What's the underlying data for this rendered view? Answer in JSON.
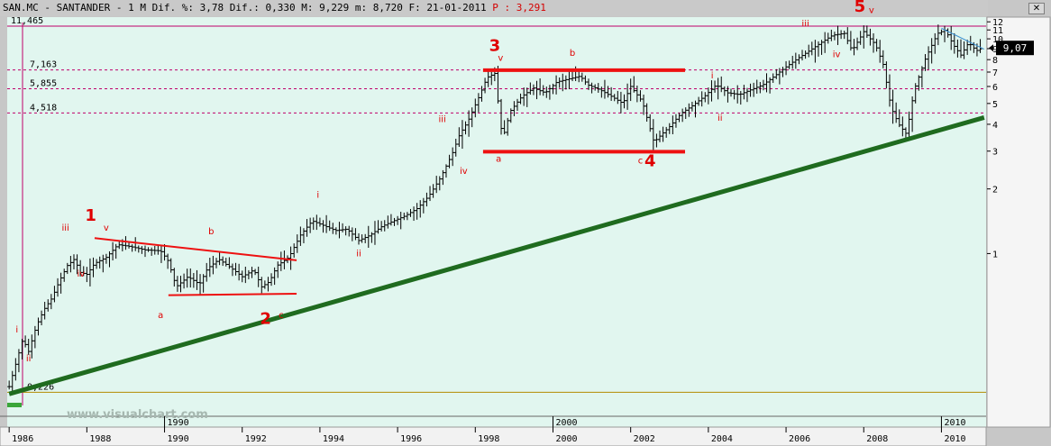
{
  "header": {
    "symbol": "SAN.MC",
    "name": "SANTANDER",
    "period": "1 M",
    "dif_pct_label": "Dif. %:",
    "dif_pct": "3,78",
    "dif_label": "Dif.:",
    "dif": "0,330",
    "high_label": "M:",
    "high": "9,229",
    "low_label": "m:",
    "low": "8,720",
    "date_label": "F:",
    "date": "21-01-2011",
    "price_label": "P :",
    "price": "3,291",
    "close_icon": "close-icon"
  },
  "watermark": "www.visualchart.com",
  "colors": {
    "background": "#e1f6ef",
    "frame": "#c7c7c7",
    "bars": "#000000",
    "wave_labels": "#e00000",
    "level_lines": "#c0006a",
    "trend_red": "#ee1111",
    "trend_green": "#1f6b1f",
    "trend_blue": "#3a8fd0",
    "last_price_box": "#000000"
  },
  "chart_data": {
    "type": "ohlc",
    "title": "SAN.MC - SANTANDER - 1 M",
    "y_scale": "log",
    "ylim": [
      0.2,
      12.5
    ],
    "xlim": [
      1986.0,
      2011.1
    ],
    "grid": false,
    "x_ticks": [
      "1986",
      "1988",
      "1990",
      "1992",
      "1994",
      "1996",
      "1998",
      "2000",
      "2002",
      "2004",
      "2006",
      "2008",
      "2010"
    ],
    "x_ticks_upper": [
      "1990",
      "2000",
      "2010"
    ],
    "y_ticks": [
      "12",
      "11",
      "10",
      "9",
      "8",
      "7",
      "6",
      "5",
      "4",
      "3",
      "2",
      "1"
    ],
    "last_price": "9,07",
    "levels": [
      {
        "label": "11,465",
        "value": 11.465,
        "style": "solid"
      },
      {
        "label": "7,163",
        "value": 7.163,
        "style": "dotted"
      },
      {
        "label": "5,855",
        "value": 5.855,
        "style": "dotted"
      },
      {
        "label": "4,518",
        "value": 4.518,
        "style": "dotted"
      },
      {
        "label": "0,226",
        "value": 0.226,
        "style": "solid"
      }
    ],
    "price_path": [
      [
        1986.0,
        0.24
      ],
      [
        1986.2,
        0.32
      ],
      [
        1986.35,
        0.4
      ],
      [
        1986.5,
        0.35
      ],
      [
        1986.7,
        0.46
      ],
      [
        1986.9,
        0.55
      ],
      [
        1987.1,
        0.62
      ],
      [
        1987.3,
        0.75
      ],
      [
        1987.5,
        0.88
      ],
      [
        1987.7,
        0.95
      ],
      [
        1987.8,
        0.82
      ],
      [
        1988.0,
        0.8
      ],
      [
        1988.2,
        0.9
      ],
      [
        1988.5,
        0.96
      ],
      [
        1988.8,
        1.1
      ],
      [
        1989.1,
        1.08
      ],
      [
        1989.5,
        1.04
      ],
      [
        1989.9,
        1.03
      ],
      [
        1990.1,
        0.92
      ],
      [
        1990.3,
        0.7
      ],
      [
        1990.6,
        0.78
      ],
      [
        1990.9,
        0.72
      ],
      [
        1991.1,
        0.85
      ],
      [
        1991.4,
        0.94
      ],
      [
        1991.7,
        0.86
      ],
      [
        1992.0,
        0.78
      ],
      [
        1992.3,
        0.84
      ],
      [
        1992.5,
        0.7
      ],
      [
        1992.7,
        0.74
      ],
      [
        1992.9,
        0.88
      ],
      [
        1993.2,
        0.96
      ],
      [
        1993.5,
        1.22
      ],
      [
        1993.8,
        1.42
      ],
      [
        1994.1,
        1.35
      ],
      [
        1994.4,
        1.28
      ],
      [
        1994.7,
        1.3
      ],
      [
        1995.0,
        1.15
      ],
      [
        1995.3,
        1.22
      ],
      [
        1995.6,
        1.34
      ],
      [
        1995.9,
        1.42
      ],
      [
        1996.2,
        1.5
      ],
      [
        1996.5,
        1.62
      ],
      [
        1996.8,
        1.85
      ],
      [
        1997.1,
        2.25
      ],
      [
        1997.4,
        2.9
      ],
      [
        1997.6,
        3.6
      ],
      [
        1997.8,
        4.1
      ],
      [
        1998.1,
        5.4
      ],
      [
        1998.3,
        6.6
      ],
      [
        1998.5,
        6.9
      ],
      [
        1998.7,
        3.4
      ],
      [
        1998.9,
        4.6
      ],
      [
        1999.2,
        5.4
      ],
      [
        1999.5,
        5.9
      ],
      [
        1999.8,
        5.6
      ],
      [
        2000.1,
        6.3
      ],
      [
        2000.4,
        6.5
      ],
      [
        2000.7,
        6.7
      ],
      [
        2000.9,
        6.1
      ],
      [
        2001.2,
        5.8
      ],
      [
        2001.5,
        5.4
      ],
      [
        2001.8,
        5.0
      ],
      [
        2002.0,
        6.0
      ],
      [
        2002.3,
        5.1
      ],
      [
        2002.6,
        3.3
      ],
      [
        2002.8,
        3.6
      ],
      [
        2003.0,
        3.9
      ],
      [
        2003.3,
        4.5
      ],
      [
        2003.6,
        4.9
      ],
      [
        2003.9,
        5.4
      ],
      [
        2004.2,
        6.1
      ],
      [
        2004.5,
        5.6
      ],
      [
        2004.8,
        5.5
      ],
      [
        2005.1,
        5.8
      ],
      [
        2005.4,
        6.1
      ],
      [
        2005.7,
        6.7
      ],
      [
        2006.0,
        7.4
      ],
      [
        2006.3,
        8.1
      ],
      [
        2006.6,
        8.8
      ],
      [
        2006.9,
        9.6
      ],
      [
        2007.2,
        10.4
      ],
      [
        2007.5,
        10.6
      ],
      [
        2007.7,
        8.8
      ],
      [
        2008.0,
        10.8
      ],
      [
        2008.3,
        9.4
      ],
      [
        2008.5,
        7.6
      ],
      [
        2008.7,
        4.8
      ],
      [
        2008.9,
        4.0
      ],
      [
        2009.1,
        3.6
      ],
      [
        2009.3,
        5.8
      ],
      [
        2009.6,
        8.2
      ],
      [
        2009.9,
        10.6
      ],
      [
        2010.1,
        11.0
      ],
      [
        2010.3,
        9.4
      ],
      [
        2010.5,
        8.4
      ],
      [
        2010.7,
        9.6
      ],
      [
        2010.9,
        8.8
      ],
      [
        2011.05,
        9.07
      ]
    ],
    "trendlines": [
      {
        "color": "green",
        "width": 5,
        "points": [
          [
            1986.0,
            0.222
          ],
          [
            2011.1,
            4.3
          ]
        ]
      },
      {
        "color": "red",
        "width": 2,
        "points": [
          [
            1988.2,
            1.18
          ],
          [
            1993.4,
            0.93
          ]
        ]
      },
      {
        "color": "red",
        "width": 2,
        "points": [
          [
            1990.1,
            0.64
          ],
          [
            1993.4,
            0.65
          ]
        ]
      },
      {
        "color": "red",
        "width": 4,
        "points": [
          [
            1998.2,
            7.15
          ],
          [
            2003.4,
            7.15
          ]
        ]
      },
      {
        "color": "red",
        "width": 4,
        "points": [
          [
            1998.2,
            2.98
          ],
          [
            2003.4,
            2.98
          ]
        ]
      },
      {
        "color": "blue",
        "width": 1,
        "points": [
          [
            2010.0,
            11.2
          ],
          [
            2011.1,
            8.95
          ]
        ]
      }
    ],
    "annotations": [
      {
        "text": "1",
        "x": 1988.1,
        "y": 1.42,
        "size": "big"
      },
      {
        "text": "2",
        "x": 1992.6,
        "y": 0.47,
        "size": "big"
      },
      {
        "text": "3",
        "x": 1998.5,
        "y": 8.8,
        "size": "big"
      },
      {
        "text": "4",
        "x": 2002.5,
        "y": 2.55,
        "size": "big"
      },
      {
        "text": "5",
        "x": 2007.9,
        "y": 13.4,
        "size": "big"
      },
      {
        "text": "i",
        "x": 1986.2,
        "y": 0.43,
        "size": "small"
      },
      {
        "text": "ii",
        "x": 1986.5,
        "y": 0.315,
        "size": "small"
      },
      {
        "text": "iii",
        "x": 1987.45,
        "y": 1.28,
        "size": "small"
      },
      {
        "text": "iv",
        "x": 1987.85,
        "y": 0.78,
        "size": "small"
      },
      {
        "text": "v",
        "x": 1988.5,
        "y": 1.28,
        "size": "small"
      },
      {
        "text": "a",
        "x": 1989.9,
        "y": 0.5,
        "size": "small"
      },
      {
        "text": "b",
        "x": 1991.2,
        "y": 1.23,
        "size": "small"
      },
      {
        "text": "c",
        "x": 1993.0,
        "y": 0.5,
        "size": "small"
      },
      {
        "text": "i",
        "x": 1993.95,
        "y": 1.82,
        "size": "small"
      },
      {
        "text": "ii",
        "x": 1995.0,
        "y": 0.97,
        "size": "small"
      },
      {
        "text": "iii",
        "x": 1997.15,
        "y": 4.1,
        "size": "small"
      },
      {
        "text": "iv",
        "x": 1997.7,
        "y": 2.35,
        "size": "small"
      },
      {
        "text": "v",
        "x": 1998.65,
        "y": 7.9,
        "size": "small"
      },
      {
        "text": "a",
        "x": 1998.6,
        "y": 2.68,
        "size": "small"
      },
      {
        "text": "b",
        "x": 2000.5,
        "y": 8.35,
        "size": "small"
      },
      {
        "text": "c",
        "x": 2002.25,
        "y": 2.63,
        "size": "small"
      },
      {
        "text": "i",
        "x": 2004.1,
        "y": 6.55,
        "size": "small"
      },
      {
        "text": "ii",
        "x": 2004.3,
        "y": 4.15,
        "size": "small"
      },
      {
        "text": "iii",
        "x": 2006.5,
        "y": 11.4,
        "size": "small"
      },
      {
        "text": "iv",
        "x": 2007.3,
        "y": 8.2,
        "size": "small"
      },
      {
        "text": "v",
        "x": 2008.2,
        "y": 13.2,
        "size": "small"
      }
    ]
  }
}
